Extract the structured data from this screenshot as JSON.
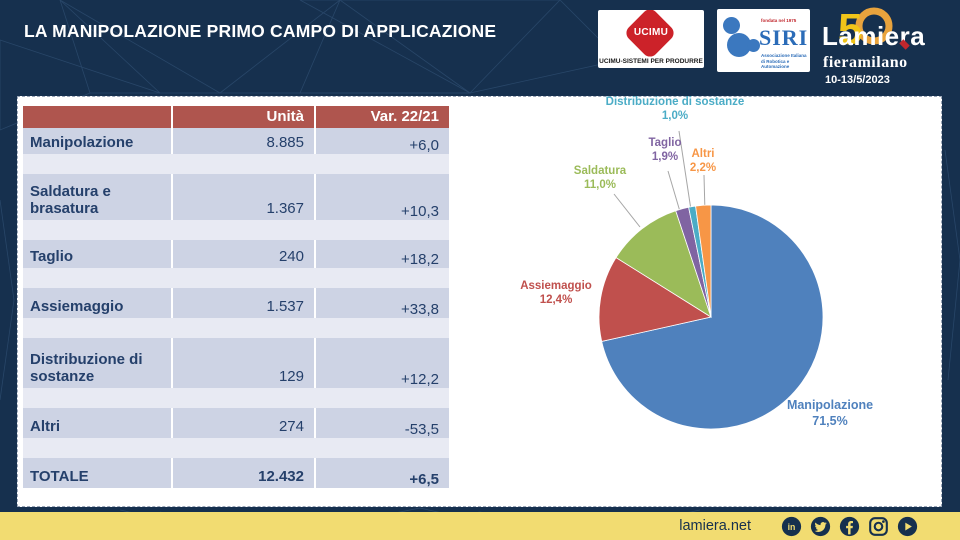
{
  "slide": {
    "title": "LA MANIPOLAZIONE PRIMO CAMPO DI APPLICAZIONE"
  },
  "logos": {
    "ucimu": {
      "name": "UCIMU",
      "tagline": "UCIMU-SISTEMI PER PRODURRE"
    },
    "siri": {
      "name": "SIRI",
      "founded": "fondata nel 1975",
      "subtitle": "Associazione Italiana di Robotica e Automazione"
    },
    "lamiera": {
      "name": "Lamiera",
      "anniversary": "50",
      "venue": "fieramilano",
      "date": "10-13/5/2023"
    }
  },
  "table": {
    "headers": [
      "",
      "Unità",
      "Var. 22/21"
    ],
    "rows": [
      {
        "label": "Manipolazione",
        "unita": "8.885",
        "var": "+6,0"
      },
      {
        "label": "Saldatura e brasatura",
        "unita": "1.367",
        "var": "+10,3"
      },
      {
        "label": "Taglio",
        "unita": "240",
        "var": "+18,2"
      },
      {
        "label": "Assiemaggio",
        "unita": "1.537",
        "var": "+33,8"
      },
      {
        "label": "Distribuzione di sostanze",
        "unita": "129",
        "var": "+12,2"
      },
      {
        "label": "Altri",
        "unita": "274",
        "var": "-53,5"
      }
    ],
    "total": {
      "label": "TOTALE",
      "unita": "12.432",
      "var": "+6,5"
    }
  },
  "chart_data": {
    "type": "pie",
    "title": "",
    "start_angle_deg": -90,
    "direction": "clockwise",
    "legend_position": "data-labels",
    "slices": [
      {
        "label": "Manipolazione",
        "pct_label": "71,5%",
        "value": 71.5,
        "units": 8885,
        "color": "#4F81BD"
      },
      {
        "label": "Assiemaggio",
        "pct_label": "12,4%",
        "value": 12.4,
        "units": 1537,
        "color": "#C0504D"
      },
      {
        "label": "Saldatura",
        "pct_label": "11,0%",
        "value": 11.0,
        "units": 1367,
        "color": "#9BBB59"
      },
      {
        "label": "Taglio",
        "pct_label": "1,9%",
        "value": 1.9,
        "units": 240,
        "color": "#8064A2"
      },
      {
        "label": "Distribuzione di sostanze",
        "pct_label": "1,0%",
        "value": 1.0,
        "units": 129,
        "color": "#4BACC6"
      },
      {
        "label": "Altri",
        "pct_label": "2,2%",
        "value": 2.2,
        "units": 274,
        "color": "#F79646"
      }
    ]
  },
  "footer": {
    "website": "lamiera.net",
    "social": [
      "linkedin",
      "twitter",
      "facebook",
      "instagram",
      "youtube"
    ]
  },
  "colors": {
    "background": "#16304E",
    "accent_yellow": "#F2DC71",
    "table_header": "#AF554E",
    "table_row": "#CDD3E4",
    "table_row_alt": "#E8EAF3",
    "table_text": "#25406B",
    "leader_line": "#A6A6A6"
  }
}
